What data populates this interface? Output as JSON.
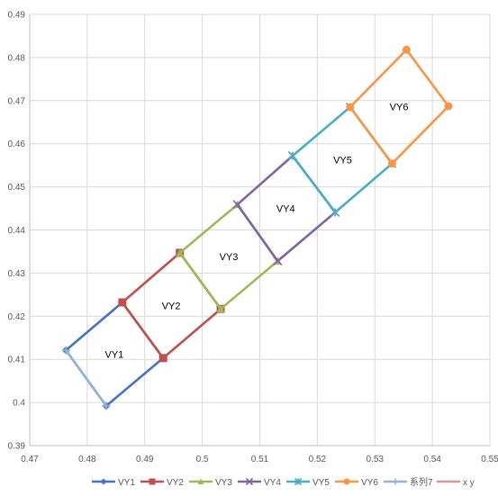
{
  "chart_data": {
    "type": "scatter",
    "title": "",
    "xlabel": "",
    "ylabel": "",
    "xlim": [
      0.47,
      0.55
    ],
    "ylim": [
      0.39,
      0.49
    ],
    "x_ticks": [
      0.47,
      0.48,
      0.49,
      0.5,
      0.51,
      0.52,
      0.53,
      0.54,
      0.55
    ],
    "y_ticks": [
      0.39,
      0.4,
      0.41,
      0.42,
      0.43,
      0.44,
      0.45,
      0.46,
      0.47,
      0.48,
      0.49
    ],
    "x_tick_labels": [
      "0.47",
      "0.48",
      "0.49",
      "0.5",
      "0.51",
      "0.52",
      "0.53",
      "0.54",
      "0.55"
    ],
    "y_tick_labels": [
      "0.39",
      "0.4",
      "0.41",
      "0.42",
      "0.43",
      "0.44",
      "0.45",
      "0.46",
      "0.47",
      "0.48",
      "0.49"
    ],
    "grid": true,
    "legend_position": "bottom",
    "series": [
      {
        "name": "VY1",
        "color": "#4472c4",
        "marker": "diamond",
        "points": [
          [
            0.4833,
            0.3992
          ],
          [
            0.4932,
            0.4103
          ],
          [
            0.4861,
            0.4232
          ],
          [
            0.4763,
            0.4121
          ]
        ]
      },
      {
        "name": "VY2",
        "color": "#c0504d",
        "marker": "square",
        "points": [
          [
            0.4932,
            0.4103
          ],
          [
            0.5032,
            0.4217
          ],
          [
            0.4961,
            0.4347
          ],
          [
            0.4861,
            0.4232
          ]
        ]
      },
      {
        "name": "VY3",
        "color": "#9bbb59",
        "marker": "triangle",
        "points": [
          [
            0.5032,
            0.4217
          ],
          [
            0.5131,
            0.4328
          ],
          [
            0.5061,
            0.4459
          ],
          [
            0.4961,
            0.4347
          ]
        ]
      },
      {
        "name": "VY4",
        "color": "#8064a2",
        "marker": "x",
        "points": [
          [
            0.5131,
            0.4328
          ],
          [
            0.5231,
            0.4441
          ],
          [
            0.5157,
            0.4572
          ],
          [
            0.5061,
            0.4459
          ]
        ]
      },
      {
        "name": "VY5",
        "color": "#4bacc6",
        "marker": "star",
        "points": [
          [
            0.5231,
            0.4441
          ],
          [
            0.533,
            0.4554
          ],
          [
            0.5257,
            0.4685
          ],
          [
            0.5157,
            0.4572
          ]
        ]
      },
      {
        "name": "VY6",
        "color": "#f79646",
        "marker": "circle",
        "points": [
          [
            0.533,
            0.4554
          ],
          [
            0.5428,
            0.4687
          ],
          [
            0.5355,
            0.4818
          ],
          [
            0.5257,
            0.4685
          ]
        ]
      },
      {
        "name": "系列7",
        "color": "#95b3d7",
        "marker": "plus",
        "points": [
          [
            0.4763,
            0.4121
          ],
          [
            0.4833,
            0.3992
          ]
        ]
      },
      {
        "name": "x y",
        "color": "#d99694",
        "marker": "none",
        "points": []
      }
    ],
    "annotations": [
      {
        "text": "VY1",
        "x": 0.4847,
        "y": 0.4112
      },
      {
        "text": "VY2",
        "x": 0.4946,
        "y": 0.4225
      },
      {
        "text": "VY3",
        "x": 0.5046,
        "y": 0.4338
      },
      {
        "text": "VY4",
        "x": 0.5145,
        "y": 0.445
      },
      {
        "text": "VY5",
        "x": 0.5244,
        "y": 0.4563
      },
      {
        "text": "VY6",
        "x": 0.5342,
        "y": 0.4686
      }
    ]
  }
}
